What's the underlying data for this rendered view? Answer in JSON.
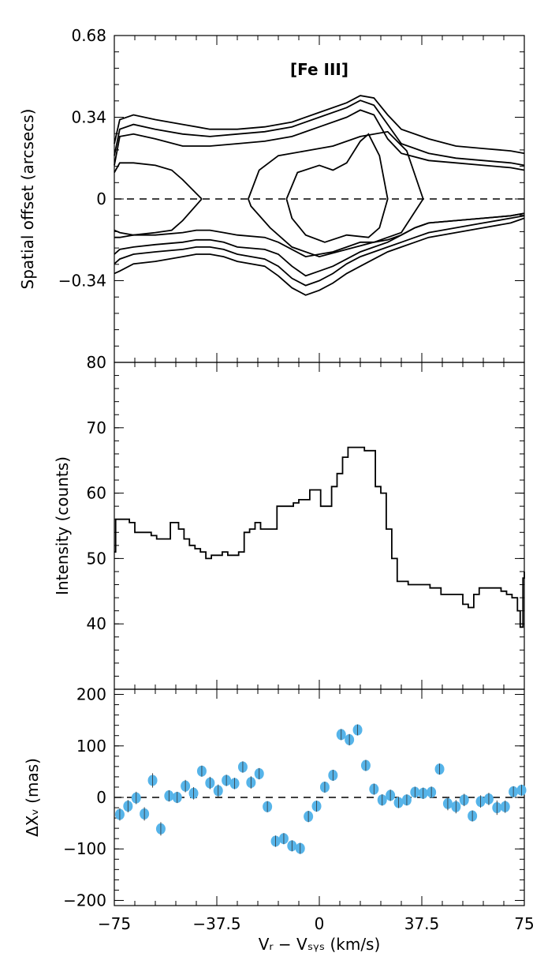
{
  "chart_data": [
    {
      "type": "contour",
      "panel_label": "[Fe III]",
      "ylabel": "Spatial offset (arcsecs)",
      "xlim": [
        -75,
        75
      ],
      "ylim": [
        -0.68,
        0.68
      ],
      "yticks": [
        {
          "value": 0.68,
          "label": "0.68"
        },
        {
          "value": 0.34,
          "label": "0.34"
        },
        {
          "value": 0,
          "label": "0"
        },
        {
          "value": -0.34,
          "label": "−0.34"
        }
      ],
      "reference_line": {
        "y": 0,
        "style": "dashed"
      },
      "contours": [
        {
          "name": "c1",
          "x": [
            -75,
            -73,
            -68,
            -60,
            -50,
            -40,
            -30,
            -20,
            -10,
            0,
            10,
            15,
            20,
            25,
            30,
            40,
            50,
            60,
            70,
            75
          ],
          "y": [
            0.23,
            0.33,
            0.35,
            0.33,
            0.31,
            0.29,
            0.29,
            0.3,
            0.32,
            0.36,
            0.4,
            0.43,
            0.42,
            0.35,
            0.29,
            0.25,
            0.22,
            0.21,
            0.2,
            0.19
          ]
        },
        {
          "name": "c2",
          "x": [
            -75,
            -73,
            -68,
            -60,
            -50,
            -40,
            -30,
            -20,
            -10,
            0,
            10,
            15,
            20,
            25,
            30,
            40,
            50,
            60,
            70,
            75
          ],
          "y": [
            0.18,
            0.29,
            0.31,
            0.29,
            0.27,
            0.26,
            0.27,
            0.28,
            0.3,
            0.34,
            0.38,
            0.41,
            0.39,
            0.31,
            0.23,
            0.19,
            0.17,
            0.16,
            0.15,
            0.14
          ]
        },
        {
          "name": "c3",
          "x": [
            -75,
            -73,
            -68,
            -60,
            -50,
            -40,
            -30,
            -20,
            -10,
            0,
            10,
            15,
            20,
            25,
            30,
            40,
            50,
            60,
            70,
            75
          ],
          "y": [
            0.14,
            0.26,
            0.27,
            0.25,
            0.22,
            0.22,
            0.23,
            0.24,
            0.26,
            0.3,
            0.34,
            0.37,
            0.35,
            0.25,
            0.19,
            0.16,
            0.15,
            0.14,
            0.13,
            0.12
          ]
        },
        {
          "name": "c4",
          "x": [
            -75,
            -73,
            -68,
            -60,
            -54,
            -50,
            -43
          ],
          "y": [
            0.11,
            0.15,
            0.15,
            0.14,
            0.12,
            0.08,
            0.0
          ]
        },
        {
          "name": "c5",
          "x": [
            -75,
            -73,
            -68,
            -60,
            -54,
            -50,
            -43
          ],
          "y": [
            -0.13,
            -0.14,
            -0.15,
            -0.14,
            -0.13,
            -0.09,
            0.0
          ]
        },
        {
          "name": "c6",
          "x": [
            -26,
            -22,
            -15,
            -5,
            5,
            15,
            25,
            32,
            38,
            30,
            20,
            10,
            0,
            -10,
            -18,
            -25,
            -26
          ],
          "y": [
            0.0,
            0.12,
            0.18,
            0.2,
            0.22,
            0.26,
            0.28,
            0.2,
            0.0,
            -0.14,
            -0.18,
            -0.21,
            -0.24,
            -0.2,
            -0.12,
            -0.03,
            0.0
          ]
        },
        {
          "name": "c7",
          "x": [
            -12,
            -8,
            0,
            5,
            10,
            15,
            18,
            22,
            25,
            22,
            18,
            10,
            2,
            -5,
            -10,
            -12
          ],
          "y": [
            0.0,
            0.11,
            0.14,
            0.12,
            0.15,
            0.24,
            0.27,
            0.18,
            0.0,
            -0.12,
            -0.16,
            -0.15,
            -0.18,
            -0.15,
            -0.08,
            0.0
          ]
        },
        {
          "name": "c8",
          "x": [
            -75,
            -73,
            -68,
            -60,
            -50,
            -45,
            -40,
            -35,
            -30,
            -20,
            -15,
            -10,
            -5,
            0,
            5,
            10,
            15,
            20,
            25,
            30,
            35,
            40,
            50,
            60,
            70,
            75
          ],
          "y": [
            -0.16,
            -0.16,
            -0.15,
            -0.15,
            -0.14,
            -0.13,
            -0.13,
            -0.14,
            -0.15,
            -0.16,
            -0.18,
            -0.21,
            -0.24,
            -0.23,
            -0.22,
            -0.2,
            -0.18,
            -0.18,
            -0.17,
            -0.15,
            -0.12,
            -0.1,
            -0.09,
            -0.08,
            -0.07,
            -0.06
          ]
        },
        {
          "name": "c9",
          "x": [
            -75,
            -73,
            -68,
            -60,
            -50,
            -45,
            -40,
            -35,
            -30,
            -20,
            -15,
            -10,
            -5,
            0,
            5,
            10,
            15,
            20,
            25,
            30,
            35,
            40,
            50,
            60,
            70,
            75
          ],
          "y": [
            -0.23,
            -0.21,
            -0.2,
            -0.19,
            -0.18,
            -0.17,
            -0.17,
            -0.18,
            -0.2,
            -0.21,
            -0.23,
            -0.28,
            -0.32,
            -0.3,
            -0.28,
            -0.25,
            -0.22,
            -0.2,
            -0.18,
            -0.15,
            -0.12,
            -0.1,
            -0.09,
            -0.08,
            -0.07,
            -0.06
          ]
        },
        {
          "name": "c10",
          "x": [
            -75,
            -73,
            -68,
            -60,
            -50,
            -45,
            -40,
            -35,
            -30,
            -20,
            -15,
            -10,
            -5,
            0,
            5,
            10,
            15,
            20,
            25,
            30,
            35,
            40,
            50,
            60,
            70,
            75
          ],
          "y": [
            -0.27,
            -0.25,
            -0.23,
            -0.22,
            -0.21,
            -0.2,
            -0.2,
            -0.21,
            -0.23,
            -0.25,
            -0.28,
            -0.33,
            -0.36,
            -0.34,
            -0.31,
            -0.27,
            -0.24,
            -0.22,
            -0.2,
            -0.18,
            -0.16,
            -0.14,
            -0.12,
            -0.1,
            -0.08,
            -0.07
          ]
        },
        {
          "name": "c11",
          "x": [
            -75,
            -73,
            -68,
            -60,
            -50,
            -45,
            -40,
            -35,
            -30,
            -20,
            -15,
            -10,
            -5,
            0,
            5,
            10,
            15,
            20,
            25,
            30,
            35,
            40,
            50,
            60,
            70,
            75
          ],
          "y": [
            -0.31,
            -0.3,
            -0.27,
            -0.26,
            -0.24,
            -0.23,
            -0.23,
            -0.24,
            -0.26,
            -0.28,
            -0.32,
            -0.37,
            -0.4,
            -0.38,
            -0.35,
            -0.31,
            -0.28,
            -0.25,
            -0.22,
            -0.2,
            -0.18,
            -0.16,
            -0.14,
            -0.12,
            -0.1,
            -0.08
          ]
        }
      ]
    },
    {
      "type": "line",
      "ylabel": "Intensity (counts)",
      "xlim": [
        -75,
        75
      ],
      "ylim": [
        30,
        80
      ],
      "yticks": [
        {
          "value": 80,
          "label": "80"
        },
        {
          "value": 70,
          "label": "70"
        },
        {
          "value": 60,
          "label": "60"
        },
        {
          "value": 50,
          "label": "50"
        },
        {
          "value": 40,
          "label": "40"
        }
      ],
      "x": [
        -75,
        -74.5,
        -73.5,
        -71.5,
        -69.5,
        -67.5,
        -65.5,
        -63.5,
        -61.5,
        -59.5,
        -57.5,
        -55.5,
        -54.5,
        -53.5,
        -51.5,
        -49.5,
        -47.5,
        -45.5,
        -43.5,
        -41.5,
        -39.5,
        -37.5,
        -35.5,
        -33.5,
        -31.5,
        -29.5,
        -27.5,
        -25.5,
        -23.5,
        -21.5,
        -19.5,
        -17.5,
        -15.5,
        -13.5,
        -11.5,
        -9.5,
        -7.5,
        -5.5,
        -3.5,
        -1.5,
        0.5,
        2.5,
        4.5,
        6.5,
        8.5,
        10.5,
        12.5,
        14.5,
        16.5,
        18.5,
        20.5,
        22.5,
        24.5,
        26.5,
        28.5,
        30.5,
        32.5,
        34.5,
        36.5,
        38.5,
        40.5,
        42.5,
        44.5,
        46.5,
        48.5,
        50.5,
        52.5,
        54.5,
        56.5,
        58.5,
        60.5,
        62.5,
        64.5,
        66.5,
        68.5,
        70.5,
        72.5,
        73.5,
        74.5,
        75
      ],
      "values": [
        51,
        56,
        56,
        56,
        55.5,
        54,
        54,
        54,
        53.5,
        53,
        53,
        53,
        55.5,
        55.5,
        54.5,
        53,
        52,
        51.5,
        51,
        50,
        50.5,
        50.5,
        51,
        50.5,
        50.5,
        51,
        54,
        54.5,
        55.5,
        54.5,
        54.5,
        54.5,
        58,
        58,
        58,
        58.5,
        59,
        59,
        60.5,
        60.5,
        58,
        58,
        61,
        63,
        65.5,
        67,
        67,
        67,
        66.5,
        66.5,
        61,
        60,
        54.5,
        50,
        46.5,
        46.5,
        46,
        46,
        46,
        46,
        45.5,
        45.5,
        44.5,
        44.5,
        44.5,
        44.5,
        43,
        42.5,
        44.5,
        45.5,
        45.5,
        45.5,
        45.5,
        45,
        44.5,
        44,
        42,
        39.5,
        47,
        48
      ]
    },
    {
      "type": "scatter",
      "ylabel": "ΔXᵥ (mas)",
      "xlabel": "Vᵣ − Vₛᵧₛ (km/s)",
      "xlim": [
        -75,
        75
      ],
      "ylim": [
        -210,
        210
      ],
      "xticks": [
        {
          "value": -75,
          "label": "−75"
        },
        {
          "value": -37.5,
          "label": "−37.5"
        },
        {
          "value": 0,
          "label": "0"
        },
        {
          "value": 37.5,
          "label": "37.5"
        },
        {
          "value": 75,
          "label": "75"
        }
      ],
      "yticks": [
        {
          "value": 200,
          "label": "200"
        },
        {
          "value": 100,
          "label": "100"
        },
        {
          "value": 0,
          "label": "0"
        },
        {
          "value": -100,
          "label": "−100"
        },
        {
          "value": -200,
          "label": "−200"
        }
      ],
      "reference_line": {
        "y": 0,
        "style": "dashed"
      },
      "marker_color": "#56b4e9",
      "x": [
        -73,
        -70,
        -67,
        -64,
        -61,
        -58,
        -55,
        -52,
        -49,
        -46,
        -43,
        -40,
        -37,
        -34,
        -31,
        -28,
        -25,
        -22,
        -19,
        -16,
        -13,
        -10,
        -7,
        -4,
        -1,
        2,
        5,
        8,
        11,
        14,
        17,
        20,
        23,
        26,
        29,
        32,
        35,
        38,
        41,
        44,
        47,
        50,
        53,
        56,
        59,
        62,
        65,
        68,
        71,
        74
      ],
      "values": [
        -33,
        -17,
        -1,
        -32,
        33,
        -61,
        3,
        0,
        22,
        8,
        51,
        28,
        13,
        33,
        27,
        59,
        29,
        46,
        -18,
        -85,
        -80,
        -94,
        -99,
        -37,
        -17,
        20,
        43,
        122,
        112,
        131,
        62,
        16,
        -5,
        4,
        -10,
        -5,
        10,
        8,
        10,
        55,
        -12,
        -18,
        -5,
        -36,
        -8,
        -3,
        -20,
        -18,
        11,
        14
      ],
      "errors": [
        12,
        12,
        12,
        13,
        14,
        13,
        11,
        11,
        12,
        12,
        10,
        12,
        12,
        11,
        11,
        11,
        12,
        11,
        10,
        11,
        10,
        10,
        10,
        11,
        10,
        10,
        10,
        10,
        11,
        10,
        10,
        10,
        11,
        11,
        10,
        10,
        10,
        11,
        11,
        10,
        13,
        13,
        12,
        10,
        12,
        12,
        14,
        12,
        10,
        10
      ]
    }
  ]
}
